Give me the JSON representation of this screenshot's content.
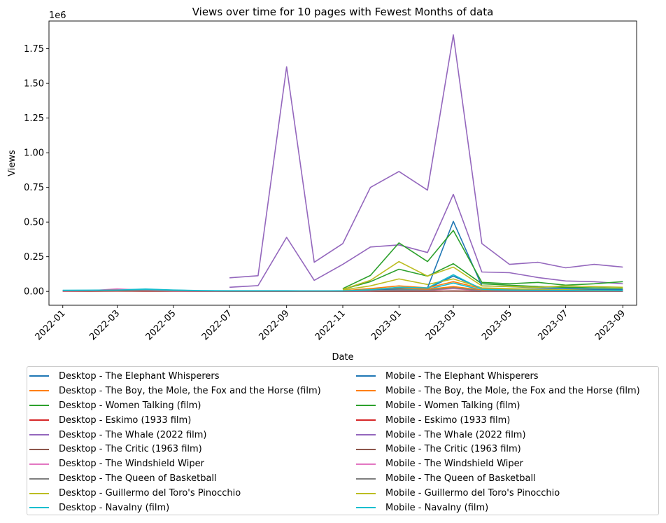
{
  "chart_data": {
    "type": "line",
    "title": "Views over time for 10 pages with Fewest Months of data",
    "xlabel": "Date",
    "ylabel": "Views",
    "y_offset_label": "1e6",
    "ylim": [
      -100000,
      1950000
    ],
    "y_ticks": [
      0,
      250000,
      500000,
      750000,
      1000000,
      1250000,
      1500000,
      1750000
    ],
    "y_tick_labels": [
      "0.00",
      "0.25",
      "0.50",
      "0.75",
      "1.00",
      "1.25",
      "1.50",
      "1.75"
    ],
    "xlim": [
      "2021-12-17",
      "2023-09-16"
    ],
    "x_ticks": [
      "2022-01",
      "2022-03",
      "2022-05",
      "2022-07",
      "2022-09",
      "2022-11",
      "2023-01",
      "2023-03",
      "2023-05",
      "2023-07",
      "2023-09"
    ],
    "x": [
      "2022-01",
      "2022-02",
      "2022-03",
      "2022-04",
      "2022-05",
      "2022-06",
      "2022-07",
      "2022-08",
      "2022-09",
      "2022-10",
      "2022-11",
      "2022-12",
      "2023-01",
      "2023-02",
      "2023-03",
      "2023-04",
      "2023-05",
      "2023-06",
      "2023-07",
      "2023-08",
      "2023-09"
    ],
    "grid": false,
    "legend_position": "bottom",
    "series": [
      {
        "name": "Desktop - The Elephant Whisperers",
        "color": "#1f77b4",
        "values": [
          null,
          null,
          null,
          null,
          null,
          null,
          null,
          null,
          null,
          null,
          2000,
          5000,
          15000,
          20000,
          110000,
          20000,
          15000,
          12000,
          10000,
          8000,
          7000
        ]
      },
      {
        "name": "Desktop - The Boy, the Mole, the Fox and the Horse (film)",
        "color": "#ff7f0e",
        "values": [
          null,
          null,
          null,
          null,
          null,
          null,
          null,
          null,
          null,
          null,
          5000,
          20000,
          40000,
          25000,
          70000,
          20000,
          15000,
          12000,
          10000,
          9000,
          8000
        ]
      },
      {
        "name": "Desktop - Women Talking (film)",
        "color": "#2ca02c",
        "values": [
          null,
          null,
          null,
          null,
          null,
          null,
          null,
          null,
          null,
          null,
          15000,
          70000,
          160000,
          110000,
          200000,
          55000,
          45000,
          35000,
          30000,
          25000,
          22000
        ]
      },
      {
        "name": "Desktop - Eskimo (1933 film)",
        "color": "#d62728",
        "values": [
          2000,
          2000,
          3000,
          2000,
          2000,
          1500,
          1500,
          1500,
          1500,
          1500,
          1500,
          1500,
          2000,
          2000,
          3000,
          2000,
          1500,
          1500,
          1500,
          1500,
          1500
        ]
      },
      {
        "name": "Desktop - The Whale (2022 film)",
        "color": "#9467bd",
        "values": [
          null,
          null,
          null,
          null,
          null,
          null,
          30000,
          42000,
          390000,
          80000,
          195000,
          320000,
          335000,
          280000,
          700000,
          140000,
          135000,
          100000,
          75000,
          70000,
          55000
        ]
      },
      {
        "name": "Desktop - The Critic (1963 film)",
        "color": "#8c564b",
        "values": [
          4000,
          4000,
          5000,
          4000,
          3000,
          3000,
          2000,
          2000,
          2000,
          2000,
          2000,
          2000,
          2000,
          2000,
          3000,
          2000,
          2000,
          2000,
          2000,
          2000,
          2000
        ]
      },
      {
        "name": "Desktop - The Windshield Wiper",
        "color": "#e377c2",
        "values": [
          5000,
          6000,
          18000,
          8000,
          5000,
          4000,
          3000,
          3000,
          3000,
          3000,
          3000,
          5000,
          10000,
          8000,
          25000,
          5000,
          4000,
          3000,
          3000,
          3000,
          3000
        ]
      },
      {
        "name": "Desktop - The Queen of Basketball",
        "color": "#7f7f7f",
        "values": [
          6000,
          7000,
          12000,
          9000,
          6000,
          5000,
          4000,
          4000,
          4000,
          4000,
          4000,
          6000,
          12000,
          10000,
          30000,
          6000,
          5000,
          4000,
          4000,
          4000,
          3000
        ]
      },
      {
        "name": "Desktop - Guillermo del Toro's Pinocchio",
        "color": "#bcbd22",
        "values": [
          null,
          null,
          null,
          null,
          null,
          null,
          null,
          null,
          null,
          null,
          10000,
          40000,
          90000,
          50000,
          90000,
          25000,
          20000,
          15000,
          12000,
          10000,
          10000
        ]
      },
      {
        "name": "Desktop - Navalny (film)",
        "color": "#17becf",
        "values": [
          8000,
          9000,
          10000,
          17000,
          10000,
          6000,
          5000,
          5000,
          5000,
          4000,
          5000,
          10000,
          20000,
          15000,
          60000,
          10000,
          8000,
          6000,
          5000,
          5000,
          4000
        ]
      },
      {
        "name": "Mobile - The Elephant Whisperers",
        "color": "#1f77b4",
        "values": [
          null,
          null,
          null,
          null,
          null,
          null,
          null,
          null,
          null,
          null,
          3000,
          8000,
          20000,
          25000,
          505000,
          40000,
          35000,
          25000,
          20000,
          15000,
          12000
        ]
      },
      {
        "name": "Mobile - The Boy, the Mole, the Fox and the Horse (film)",
        "color": "#ff7f0e",
        "values": [
          null,
          null,
          null,
          null,
          null,
          null,
          null,
          null,
          null,
          null,
          5000,
          15000,
          25000,
          15000,
          35000,
          10000,
          10000,
          8000,
          7000,
          6000,
          5000
        ]
      },
      {
        "name": "Mobile - Women Talking (film)",
        "color": "#2ca02c",
        "values": [
          null,
          null,
          null,
          null,
          null,
          null,
          null,
          null,
          null,
          null,
          20000,
          115000,
          350000,
          215000,
          440000,
          65000,
          55000,
          65000,
          45000,
          55000,
          70000
        ]
      },
      {
        "name": "Mobile - Eskimo (1933 film)",
        "color": "#d62728",
        "values": [
          1500,
          1500,
          2000,
          1500,
          1500,
          1000,
          1000,
          1000,
          1000,
          1000,
          1000,
          1000,
          1500,
          1500,
          2000,
          1500,
          1000,
          1000,
          1000,
          1000,
          1000
        ]
      },
      {
        "name": "Mobile - The Whale (2022 film)",
        "color": "#9467bd",
        "values": [
          null,
          null,
          null,
          null,
          null,
          null,
          98000,
          113000,
          1620000,
          210000,
          345000,
          750000,
          865000,
          730000,
          1850000,
          345000,
          195000,
          210000,
          170000,
          195000,
          175000
        ]
      },
      {
        "name": "Mobile - The Critic (1963 film)",
        "color": "#8c564b",
        "values": [
          3000,
          3000,
          4000,
          3000,
          2500,
          2000,
          1500,
          1500,
          1500,
          1500,
          1500,
          1500,
          1500,
          1500,
          2000,
          1500,
          1500,
          1500,
          1500,
          1500,
          1500
        ]
      },
      {
        "name": "Mobile - The Windshield Wiper",
        "color": "#e377c2",
        "values": [
          4000,
          5000,
          12000,
          6000,
          4000,
          3000,
          2500,
          2500,
          2500,
          2500,
          2500,
          4000,
          8000,
          6000,
          20000,
          4000,
          3000,
          3000,
          2500,
          2500,
          2500
        ]
      },
      {
        "name": "Mobile - The Queen of Basketball",
        "color": "#7f7f7f",
        "values": [
          5000,
          6000,
          10000,
          8000,
          5000,
          4000,
          3000,
          3000,
          3000,
          3000,
          3000,
          5000,
          10000,
          8000,
          25000,
          5000,
          4000,
          3500,
          3000,
          3000,
          3000
        ]
      },
      {
        "name": "Mobile - Guillermo del Toro's Pinocchio",
        "color": "#bcbd22",
        "values": [
          null,
          null,
          null,
          null,
          null,
          null,
          null,
          null,
          null,
          null,
          15000,
          80000,
          215000,
          110000,
          175000,
          40000,
          35000,
          30000,
          40000,
          35000,
          30000
        ]
      },
      {
        "name": "Mobile - Navalny (film)",
        "color": "#17becf",
        "values": [
          7000,
          8000,
          9000,
          15000,
          9000,
          5000,
          4000,
          4000,
          4000,
          3500,
          4000,
          12000,
          30000,
          25000,
          120000,
          15000,
          10000,
          8000,
          7000,
          6000,
          5000
        ]
      }
    ]
  }
}
